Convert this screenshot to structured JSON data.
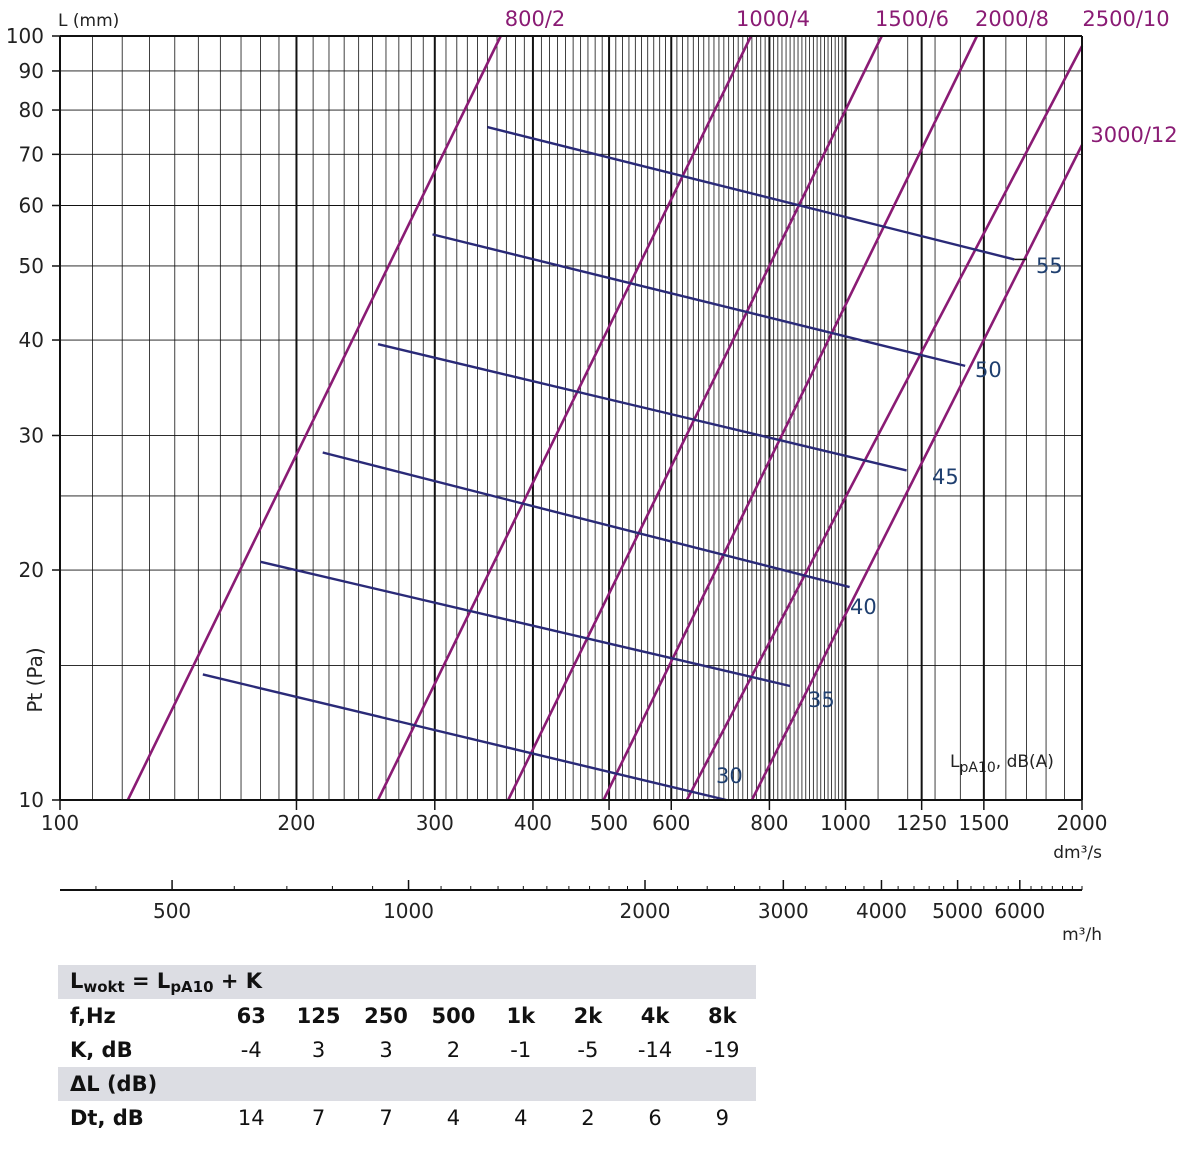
{
  "chart_data": {
    "type": "line",
    "scale": "log-log",
    "x_axis": {
      "unit": "dm³/s",
      "range": [
        100,
        2000
      ],
      "tick_labels": [
        "100",
        "200",
        "300",
        "400",
        "500",
        "600",
        "800",
        "1000",
        "1250",
        "1500",
        "2000"
      ],
      "tick_values": [
        100,
        200,
        300,
        400,
        500,
        600,
        800,
        1000,
        1250,
        1500,
        2000
      ]
    },
    "x2_axis": {
      "unit": "m³/h",
      "tick_labels": [
        "500",
        "1000",
        "2000",
        "3000",
        "4000",
        "5000",
        "6000"
      ],
      "tick_values": [
        500,
        1000,
        2000,
        3000,
        4000,
        5000,
        6000
      ]
    },
    "y_axis": {
      "label": "Pt (Pa)",
      "range": [
        10,
        100
      ],
      "tick_labels": [
        "10",
        "20",
        "30",
        "40",
        "50",
        "60",
        "70",
        "80",
        "90",
        "100"
      ],
      "tick_values": [
        10,
        20,
        30,
        40,
        50,
        60,
        70,
        80,
        90,
        100
      ]
    },
    "corner_label": "L (mm)",
    "size_series": [
      {
        "name": "800/2",
        "points": [
          [
            122,
            10
          ],
          [
            364,
            100
          ]
        ]
      },
      {
        "name": "1000/4",
        "points": [
          [
            254,
            10
          ],
          [
            758,
            100
          ]
        ]
      },
      {
        "name": "1500/6",
        "points": [
          [
            372,
            10
          ],
          [
            1112,
            100
          ]
        ]
      },
      {
        "name": "2000/8",
        "points": [
          [
            492,
            10
          ],
          [
            1470,
            100
          ]
        ]
      },
      {
        "name": "2500/10",
        "points": [
          [
            628,
            10
          ],
          [
            2000,
            97
          ]
        ]
      },
      {
        "name": "3000/12",
        "points": [
          [
            760,
            10
          ],
          [
            2000,
            72
          ]
        ]
      }
    ],
    "sound_series_title": "LpA10, dB(A)",
    "sound_series": [
      {
        "name": "55",
        "points": [
          [
            350,
            76
          ],
          [
            1640,
            51
          ]
        ]
      },
      {
        "name": "50",
        "points": [
          [
            298,
            55
          ],
          [
            1420,
            37
          ]
        ]
      },
      {
        "name": "45",
        "points": [
          [
            254,
            39.5
          ],
          [
            1196,
            27
          ]
        ]
      },
      {
        "name": "40",
        "points": [
          [
            216,
            28.5
          ],
          [
            1012,
            19
          ]
        ]
      },
      {
        "name": "35",
        "points": [
          [
            180,
            20.5
          ],
          [
            850,
            14.1
          ]
        ]
      },
      {
        "name": "30",
        "points": [
          [
            152,
            14.6
          ],
          [
            705,
            10
          ]
        ]
      }
    ],
    "colors": {
      "size_lines": "#8a1b74",
      "sound_lines": "#2a2a78",
      "sound_labels": "#1f3f6f",
      "grid": "#111111"
    }
  },
  "table": {
    "formula_main": "L",
    "formula_sub1": "wokt",
    "formula_mid": " = L",
    "formula_sub2": "pA10",
    "formula_end": " + K",
    "freq_label": "f,Hz",
    "frequencies": [
      "63",
      "125",
      "250",
      "500",
      "1k",
      "2k",
      "4k",
      "8k"
    ],
    "k_label": "K, dB",
    "k_values": [
      "-4",
      "3",
      "3",
      "2",
      "-1",
      "-5",
      "-14",
      "-19"
    ],
    "delta_label": "ΔL (dB)",
    "dt_label": "Dt, dB",
    "dt_values": [
      "14",
      "7",
      "7",
      "4",
      "4",
      "2",
      "6",
      "9"
    ]
  }
}
